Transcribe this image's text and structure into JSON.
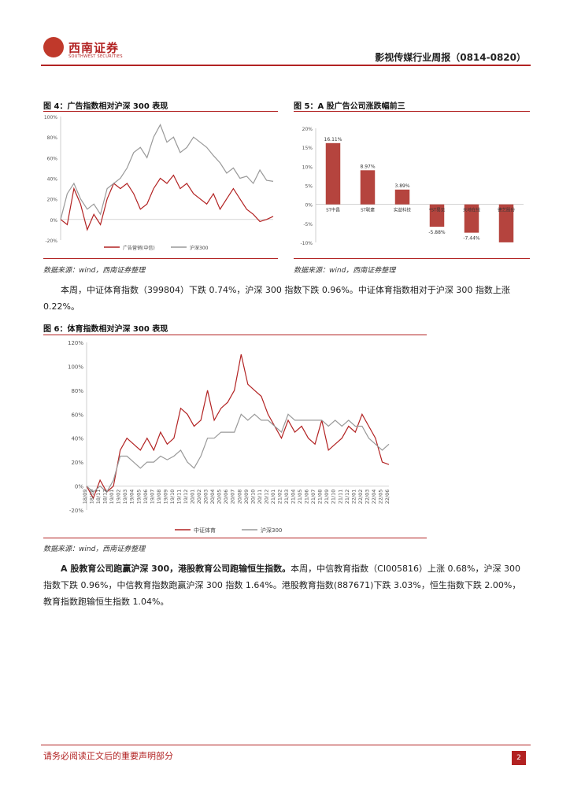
{
  "header": {
    "logo_cn": "西南证券",
    "logo_en": "SOUTHWEST SECURITIES",
    "report_title": "影视传媒行业周报（0814-0820）"
  },
  "fig4": {
    "title": "图 4：广告指数相对沪深 300 表现",
    "source": "数据来源：wind，西南证券整理",
    "legend": [
      "广告营销(中信)",
      "沪深300"
    ],
    "y_ticks": [
      "100%",
      "80%",
      "60%",
      "40%",
      "20%",
      "0%",
      "-20%"
    ]
  },
  "fig5": {
    "title": "图 5：A 股广告公司涨跌幅前三",
    "source": "数据来源：wind，西南证券整理",
    "y_ticks": [
      "20%",
      "15%",
      "10%",
      "5%",
      "0%",
      "-5%",
      "-10%"
    ]
  },
  "para1": "本周，中证体育指数（399804）下跌 0.74%，沪深 300 指数下跌 0.96%。中证体育指数相对于沪深 300 指数上涨 0.22%。",
  "fig6": {
    "title": "图 6：体育指数相对沪深 300 表现",
    "source": "数据来源：wind，西南证券整理",
    "legend": [
      "中证体育",
      "沪深300"
    ],
    "y_ticks": [
      "120%",
      "100%",
      "80%",
      "60%",
      "40%",
      "20%",
      "0%",
      "-20%"
    ],
    "x_ticks": [
      "18/09",
      "18/10",
      "18/11",
      "18/12",
      "19/01",
      "19/02",
      "19/03",
      "19/04",
      "19/05",
      "19/06",
      "19/07",
      "19/08",
      "19/09",
      "19/10",
      "19/11",
      "19/12",
      "20/01",
      "20/02",
      "20/03",
      "20/04",
      "20/05",
      "20/06",
      "20/07",
      "20/08",
      "20/09",
      "20/10",
      "20/11",
      "20/12",
      "21/01",
      "21/02",
      "21/03",
      "21/04",
      "21/05",
      "21/06",
      "21/07",
      "21/08",
      "21/09",
      "21/10",
      "21/11",
      "21/12",
      "22/01",
      "22/02",
      "22/03",
      "22/04",
      "22/05",
      "22/06"
    ]
  },
  "para2": {
    "bold": "A 股教育公司跑赢沪深 300，港股教育公司跑输恒生指数。",
    "text": "本周，中信教育指数（CI005816）上涨 0.68%，沪深 300 指数下跌 0.96%，中信教育指数跑赢沪深 300 指数 1.64%。港股教育指数(887671)下跌 3.03%，恒生指数下跌 2.00%，教育指数跑输恒生指数 1.04%。"
  },
  "footer": {
    "disclaimer": "请务必阅读正文后的重要声明部分",
    "page": "2"
  },
  "colors": {
    "red": "#b22222",
    "gray": "#999999",
    "bar": "#b5443e"
  },
  "chart_data": [
    {
      "type": "line",
      "title": "图 4：广告指数相对沪深 300 表现",
      "ylim": [
        -0.2,
        1.0
      ],
      "series": [
        {
          "name": "广告营销(中信)",
          "values": [
            0.0,
            -0.05,
            0.3,
            0.15,
            -0.1,
            0.05,
            -0.05,
            0.2,
            0.35,
            0.3,
            0.35,
            0.25,
            0.1,
            0.15,
            0.3,
            0.4,
            0.35,
            0.43,
            0.3,
            0.35,
            0.25,
            0.2,
            0.15,
            0.25,
            0.1,
            0.2,
            0.3,
            0.2,
            0.1,
            0.05,
            -0.02,
            0.0,
            0.03
          ]
        },
        {
          "name": "沪深300",
          "values": [
            0.0,
            0.25,
            0.35,
            0.2,
            0.1,
            0.15,
            0.05,
            0.3,
            0.35,
            0.4,
            0.5,
            0.65,
            0.7,
            0.6,
            0.8,
            0.92,
            0.75,
            0.8,
            0.65,
            0.7,
            0.8,
            0.75,
            0.7,
            0.62,
            0.55,
            0.45,
            0.5,
            0.4,
            0.42,
            0.35,
            0.48,
            0.38,
            0.37
          ]
        }
      ],
      "grid": false,
      "legend": "bottom"
    },
    {
      "type": "bar",
      "title": "图 5：A 股广告公司涨跌幅前三",
      "categories": [
        "ST中昌",
        "ST联建",
        "实益科技",
        "*ST易见",
        "天地在线",
        "德艺股份"
      ],
      "values": [
        16.11,
        8.97,
        3.89,
        -5.88,
        -7.44,
        -9.98
      ],
      "data_labels": [
        "16.11%",
        "8.97%",
        "3.89%",
        "-5.88%",
        "-7.44%",
        ""
      ],
      "ylim": [
        -10,
        20
      ],
      "grid": false
    },
    {
      "type": "line",
      "title": "图 6：体育指数相对沪深 300 表现",
      "ylim": [
        -0.2,
        1.2
      ],
      "series": [
        {
          "name": "中证体育",
          "values": [
            0.0,
            -0.1,
            0.05,
            -0.05,
            0.0,
            0.3,
            0.4,
            0.35,
            0.3,
            0.4,
            0.3,
            0.45,
            0.35,
            0.4,
            0.65,
            0.6,
            0.5,
            0.55,
            0.8,
            0.55,
            0.65,
            0.7,
            0.8,
            1.1,
            0.85,
            0.8,
            0.75,
            0.6,
            0.5,
            0.4,
            0.55,
            0.45,
            0.5,
            0.4,
            0.35,
            0.55,
            0.3,
            0.35,
            0.4,
            0.5,
            0.45,
            0.6,
            0.5,
            0.4,
            0.2,
            0.18
          ]
        },
        {
          "name": "沪深300",
          "values": [
            0.0,
            -0.05,
            0.0,
            -0.05,
            0.05,
            0.25,
            0.25,
            0.2,
            0.15,
            0.2,
            0.2,
            0.25,
            0.22,
            0.25,
            0.3,
            0.2,
            0.15,
            0.25,
            0.4,
            0.4,
            0.45,
            0.45,
            0.45,
            0.6,
            0.55,
            0.6,
            0.55,
            0.55,
            0.5,
            0.45,
            0.6,
            0.55,
            0.55,
            0.55,
            0.55,
            0.55,
            0.5,
            0.55,
            0.5,
            0.55,
            0.5,
            0.5,
            0.4,
            0.35,
            0.3,
            0.35
          ]
        }
      ],
      "grid": false,
      "legend": "bottom"
    }
  ]
}
